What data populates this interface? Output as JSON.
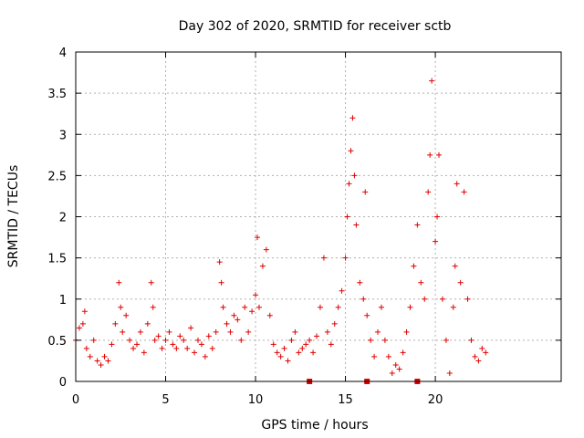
{
  "chart_data": {
    "type": "scatter",
    "title": "Day 302 of 2020, SRMTID for receiver sctb",
    "xlabel": "GPS time / hours",
    "ylabel": "SRMTID / TECUs",
    "xlim": [
      0,
      27
    ],
    "ylim": [
      0,
      4
    ],
    "xticks": [
      0,
      5,
      10,
      15,
      20
    ],
    "xtick_labels": [
      "0",
      "5",
      "10",
      "15",
      "20"
    ],
    "yticks": [
      0,
      0.5,
      1,
      1.5,
      2,
      2.5,
      3,
      3.5,
      4
    ],
    "ytick_labels": [
      "0",
      "0.5",
      "1",
      "1.5",
      "2",
      "2.5",
      "3",
      "3.5",
      "4"
    ],
    "grid": true,
    "series": [
      {
        "name": "SRMTID",
        "marker": "+",
        "color": "#e00000",
        "x": [
          0.0,
          0.2,
          0.4,
          0.5,
          0.6,
          0.8,
          1.0,
          1.2,
          1.4,
          1.6,
          1.8,
          2.0,
          2.2,
          2.4,
          2.5,
          2.6,
          2.8,
          3.0,
          3.2,
          3.4,
          3.6,
          3.8,
          4.0,
          4.2,
          4.3,
          4.4,
          4.6,
          4.8,
          5.0,
          5.2,
          5.4,
          5.6,
          5.8,
          6.0,
          6.2,
          6.4,
          6.6,
          6.8,
          7.0,
          7.2,
          7.4,
          7.6,
          7.8,
          8.0,
          8.1,
          8.2,
          8.4,
          8.6,
          8.8,
          9.0,
          9.2,
          9.4,
          9.6,
          9.8,
          10.0,
          10.1,
          10.2,
          10.4,
          10.6,
          10.8,
          11.0,
          11.2,
          11.4,
          11.6,
          11.8,
          12.0,
          12.2,
          12.4,
          12.6,
          12.8,
          13.0,
          13.2,
          13.4,
          13.6,
          13.8,
          14.0,
          14.2,
          14.4,
          14.6,
          14.8,
          15.0,
          15.1,
          15.2,
          15.3,
          15.4,
          15.5,
          15.6,
          15.8,
          16.0,
          16.1,
          16.2,
          16.4,
          16.6,
          16.8,
          17.0,
          17.2,
          17.4,
          17.6,
          17.8,
          18.0,
          18.2,
          18.4,
          18.6,
          18.8,
          19.0,
          19.2,
          19.4,
          19.6,
          19.7,
          19.8,
          20.0,
          20.1,
          20.2,
          20.4,
          20.6,
          20.8,
          21.0,
          21.1,
          21.2,
          21.4,
          21.6,
          21.8,
          22.0,
          22.2,
          22.4,
          22.6,
          22.8
        ],
        "y": [
          0.5,
          0.65,
          0.7,
          0.85,
          0.4,
          0.3,
          0.5,
          0.25,
          0.2,
          0.3,
          0.25,
          0.45,
          0.7,
          1.2,
          0.9,
          0.6,
          0.8,
          0.5,
          0.4,
          0.45,
          0.6,
          0.35,
          0.7,
          1.2,
          0.9,
          0.5,
          0.55,
          0.4,
          0.5,
          0.6,
          0.45,
          0.4,
          0.55,
          0.5,
          0.4,
          0.65,
          0.35,
          0.5,
          0.45,
          0.3,
          0.55,
          0.4,
          0.6,
          1.45,
          1.2,
          0.9,
          0.7,
          0.6,
          0.8,
          0.75,
          0.5,
          0.9,
          0.6,
          0.85,
          1.05,
          1.75,
          0.9,
          1.4,
          1.6,
          0.8,
          0.45,
          0.35,
          0.3,
          0.4,
          0.25,
          0.5,
          0.6,
          0.35,
          0.4,
          0.45,
          0.5,
          0.35,
          0.55,
          0.9,
          1.5,
          0.6,
          0.45,
          0.7,
          0.9,
          1.1,
          1.5,
          2.0,
          2.4,
          2.8,
          3.2,
          2.5,
          1.9,
          1.2,
          1.0,
          2.3,
          0.8,
          0.5,
          0.3,
          0.6,
          0.9,
          0.5,
          0.3,
          0.1,
          0.2,
          0.15,
          0.35,
          0.6,
          0.9,
          1.4,
          1.9,
          1.2,
          1.0,
          2.3,
          2.75,
          3.65,
          1.7,
          2.0,
          2.75,
          1.0,
          0.5,
          0.1,
          0.9,
          1.4,
          2.4,
          1.2,
          2.3,
          1.0,
          0.5,
          0.3,
          0.25,
          0.4,
          0.35
        ]
      }
    ],
    "bottom_markers_x": [
      13.0,
      16.2,
      19.0
    ]
  }
}
